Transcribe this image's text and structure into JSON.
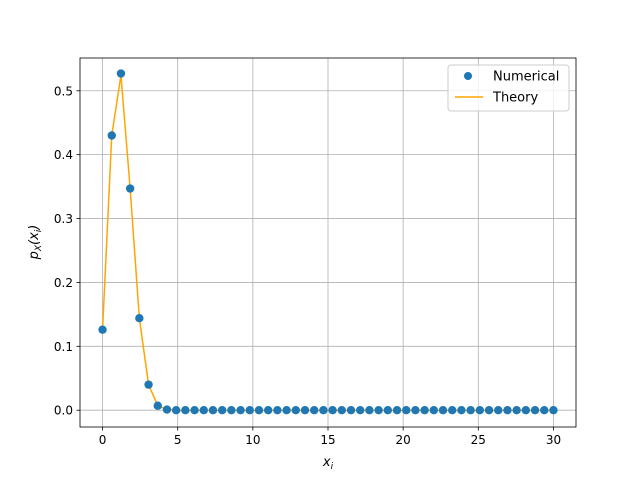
{
  "chart_data": {
    "type": "scatter",
    "xlabel": "x_i",
    "ylabel": "p_X(x_i)",
    "xlim": [
      -1.5,
      31.5
    ],
    "ylim": [
      -0.0263,
      0.5513
    ],
    "grid": true,
    "legend_placement": "top-right",
    "x_ticks": [
      0,
      5,
      10,
      15,
      20,
      25,
      30
    ],
    "y_ticks": [
      0.0,
      0.1,
      0.2,
      0.3,
      0.4,
      0.5
    ],
    "series": [
      {
        "name": "Numerical",
        "kind": "scatter",
        "color": "#1f77b4",
        "x": [
          0,
          0.6122,
          1.2245,
          1.8367,
          2.449,
          3.0612,
          3.6735,
          4.2857,
          4.898,
          5.5102,
          6.1224,
          6.7347,
          7.3469,
          7.9592,
          8.5714,
          9.1837,
          9.7959,
          10.4082,
          11.0204,
          11.6327,
          12.2449,
          12.8571,
          13.4694,
          14.0816,
          14.6939,
          15.3061,
          15.9184,
          16.5306,
          17.1429,
          17.7551,
          18.3673,
          18.9796,
          19.5918,
          20.2041,
          20.8163,
          21.4286,
          22.0408,
          22.6531,
          23.2653,
          23.8776,
          24.4898,
          25.102,
          25.7143,
          26.3265,
          26.9388,
          27.551,
          28.1633,
          28.7755,
          29.3878,
          30.0
        ],
        "y": [
          0.126,
          0.43,
          0.527,
          0.347,
          0.144,
          0.04,
          0.007,
          0.001,
          0.0,
          0.0,
          0.0,
          0.0,
          0.0,
          0.0,
          0.0,
          0.0,
          0.0,
          0.0,
          0.0,
          0.0,
          0.0,
          0.0,
          0.0,
          0.0,
          0.0,
          0.0,
          0.0,
          0.0,
          0.0,
          0.0,
          0.0,
          0.0,
          0.0,
          0.0,
          0.0,
          0.0,
          0.0,
          0.0,
          0.0,
          0.0,
          0.0,
          0.0,
          0.0,
          0.0,
          0.0,
          0.0,
          0.0,
          0.0,
          0.0,
          0.0
        ]
      },
      {
        "name": "Theory",
        "kind": "line",
        "color": "#ffa500",
        "x": [
          0,
          0.6122,
          1.2245,
          1.8367,
          2.449,
          3.0612,
          3.6735,
          4.2857,
          4.898,
          5.5102,
          6.1224,
          6.7347,
          7.3469,
          7.9592,
          8.5714,
          9.1837,
          9.7959,
          10.4082,
          11.0204,
          11.6327,
          12.2449,
          12.8571,
          13.4694,
          14.0816,
          14.6939,
          15.3061,
          15.9184,
          16.5306,
          17.1429,
          17.7551,
          18.3673,
          18.9796,
          19.5918,
          20.2041,
          20.8163,
          21.4286,
          22.0408,
          22.6531,
          23.2653,
          23.8776,
          24.4898,
          25.102,
          25.7143,
          26.3265,
          26.9388,
          27.551,
          28.1633,
          28.7755,
          29.3878,
          30.0
        ],
        "y": [
          0.126,
          0.43,
          0.524,
          0.347,
          0.144,
          0.04,
          0.007,
          0.001,
          0.0,
          0.0,
          0.0,
          0.0,
          0.0,
          0.0,
          0.0,
          0.0,
          0.0,
          0.0,
          0.0,
          0.0,
          0.0,
          0.0,
          0.0,
          0.0,
          0.0,
          0.0,
          0.0,
          0.0,
          0.0,
          0.0,
          0.0,
          0.0,
          0.0,
          0.0,
          0.0,
          0.0,
          0.0,
          0.0,
          0.0,
          0.0,
          0.0,
          0.0,
          0.0,
          0.0,
          0.0,
          0.0,
          0.0,
          0.0,
          0.0,
          0.0
        ]
      }
    ]
  }
}
